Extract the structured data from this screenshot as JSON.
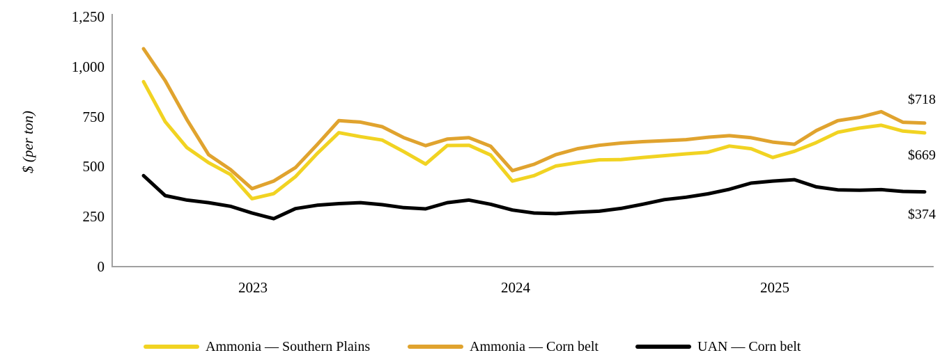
{
  "chart_data": {
    "type": "line",
    "title": "",
    "ylabel": "$ (per ton)",
    "ylim": [
      0,
      1250
    ],
    "grid": false,
    "legend_position": "bottom",
    "y_ticks": [
      "1,250",
      "1,000",
      "750",
      "500",
      "250",
      "0"
    ],
    "y_tick_values": [
      1250,
      1000,
      750,
      500,
      250,
      0
    ],
    "x_year_ticks": [
      "2023",
      "2024",
      "2025"
    ],
    "months": [
      "2022-08",
      "2022-09",
      "2022-10",
      "2022-11",
      "2022-12",
      "2023-01",
      "2023-02",
      "2023-03",
      "2023-04",
      "2023-05",
      "2023-06",
      "2023-07",
      "2023-08",
      "2023-09",
      "2023-10",
      "2023-11",
      "2023-12",
      "2024-01",
      "2024-02",
      "2024-03",
      "2024-04",
      "2024-05",
      "2024-06",
      "2024-07",
      "2024-08",
      "2024-09",
      "2024-10",
      "2024-11",
      "2024-12",
      "2025-01",
      "2025-02",
      "2025-03",
      "2025-04",
      "2025-05",
      "2025-06",
      "2025-07",
      "2025-08"
    ],
    "series": [
      {
        "name": "Ammonia — Southern Plains",
        "color": "#F1D322",
        "values": [
          925,
          725,
          595,
          520,
          461,
          340,
          365,
          450,
          565,
          670,
          650,
          633,
          575,
          513,
          606,
          607,
          558,
          428,
          455,
          503,
          520,
          534,
          535,
          546,
          555,
          564,
          572,
          603,
          590,
          546,
          577,
          620,
          672,
          693,
          707,
          678,
          669
        ]
      },
      {
        "name": "Ammonia — Corn belt",
        "color": "#E0A32E",
        "values": [
          1090,
          930,
          735,
          560,
          486,
          390,
          428,
          495,
          610,
          730,
          723,
          700,
          645,
          605,
          638,
          645,
          602,
          480,
          512,
          560,
          590,
          607,
          618,
          625,
          630,
          635,
          647,
          655,
          645,
          623,
          612,
          680,
          730,
          747,
          775,
          722,
          718
        ]
      },
      {
        "name": "UAN — Corn belt",
        "color": "#000000",
        "values": [
          455,
          355,
          333,
          320,
          302,
          268,
          240,
          290,
          307,
          315,
          320,
          310,
          295,
          289,
          320,
          333,
          312,
          283,
          268,
          265,
          272,
          277,
          291,
          312,
          335,
          347,
          364,
          387,
          418,
          428,
          435,
          399,
          384,
          382,
          385,
          376,
          374
        ]
      }
    ],
    "end_labels": [
      {
        "text": "$718",
        "series": "Ammonia — Corn belt"
      },
      {
        "text": "$669",
        "series": "Ammonia — Southern Plains"
      },
      {
        "text": "$374",
        "series": "UAN — Corn belt"
      }
    ],
    "axis_color": "#A0A0A0"
  }
}
